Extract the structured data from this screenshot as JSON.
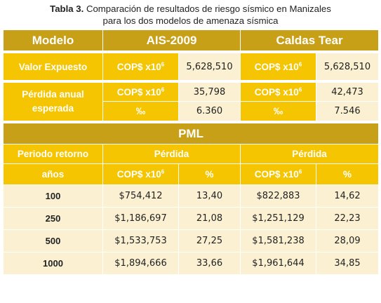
{
  "caption": {
    "label": "Tabla 3.",
    "line1": "Comparación de resultados de riesgo sísmico en Manizales",
    "line2": "para los dos modelos de amenaza sísmica"
  },
  "header": {
    "modelo": "Modelo",
    "model_a": "AIS-2009",
    "model_b": "Caldas Tear"
  },
  "units": {
    "cop": "COP$ x10",
    "cop_exp": "6",
    "permil": "‰",
    "percent": "%"
  },
  "valor_expuesto": {
    "label": "Valor Expuesto",
    "a": "5,628,510",
    "b": "5,628,510"
  },
  "perdida_anual": {
    "label_line1": "Pérdida anual",
    "label_line2": "esperada",
    "cop_a": "35,798",
    "cop_b": "42,473",
    "permil_a": "6.360",
    "permil_b": "7.546"
  },
  "pml": {
    "title": "PML",
    "periodo_label": "Periodo retorno",
    "anos_label": "años",
    "perdida_a": "Pérdida",
    "perdida_b": "Pérdida",
    "rows": [
      {
        "periodo": "100",
        "a_cop": "$754,412",
        "a_pct": "13,40",
        "b_cop": "$822,883",
        "b_pct": "14,62"
      },
      {
        "periodo": "250",
        "a_cop": "$1,186,697",
        "a_pct": "21,08",
        "b_cop": "$1,251,129",
        "b_pct": "22,23"
      },
      {
        "periodo": "500",
        "a_cop": "$1,533,753",
        "a_pct": "27,25",
        "b_cop": "$1,581,238",
        "b_pct": "28,09"
      },
      {
        "periodo": "1000",
        "a_cop": "$1,894,666",
        "a_pct": "33,66",
        "b_cop": "$1,961,644",
        "b_pct": "34,85"
      }
    ]
  }
}
